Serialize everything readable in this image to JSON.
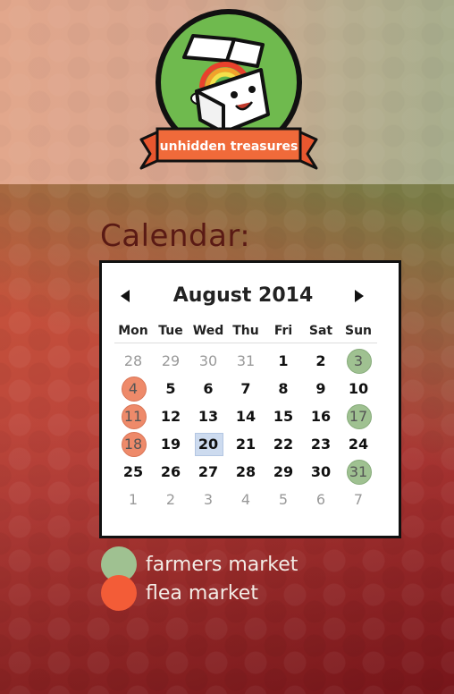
{
  "logo": {
    "text": "unhidden treasures"
  },
  "page": {
    "title": "Calendar:"
  },
  "calendar": {
    "month_label": "August 2014",
    "days_of_week": [
      "Mon",
      "Tue",
      "Wed",
      "Thu",
      "Fri",
      "Sat",
      "Sun"
    ],
    "weeks": [
      [
        {
          "d": "28",
          "other": true
        },
        {
          "d": "29",
          "other": true
        },
        {
          "d": "30",
          "other": true
        },
        {
          "d": "31",
          "other": true
        },
        {
          "d": "1"
        },
        {
          "d": "2"
        },
        {
          "d": "3",
          "event": "farmers"
        }
      ],
      [
        {
          "d": "4",
          "event": "flea"
        },
        {
          "d": "5"
        },
        {
          "d": "6"
        },
        {
          "d": "7"
        },
        {
          "d": "8"
        },
        {
          "d": "9"
        },
        {
          "d": "10"
        }
      ],
      [
        {
          "d": "11",
          "event": "flea"
        },
        {
          "d": "12"
        },
        {
          "d": "13"
        },
        {
          "d": "14"
        },
        {
          "d": "15"
        },
        {
          "d": "16"
        },
        {
          "d": "17",
          "event": "farmers"
        }
      ],
      [
        {
          "d": "18",
          "event": "flea"
        },
        {
          "d": "19"
        },
        {
          "d": "20",
          "today": true
        },
        {
          "d": "21"
        },
        {
          "d": "22"
        },
        {
          "d": "23"
        },
        {
          "d": "24"
        }
      ],
      [
        {
          "d": "25"
        },
        {
          "d": "26"
        },
        {
          "d": "27"
        },
        {
          "d": "28"
        },
        {
          "d": "29"
        },
        {
          "d": "30"
        },
        {
          "d": "31",
          "event": "farmers"
        }
      ],
      [
        {
          "d": "1",
          "other": true
        },
        {
          "d": "2",
          "other": true
        },
        {
          "d": "3",
          "other": true
        },
        {
          "d": "4",
          "other": true
        },
        {
          "d": "5",
          "other": true
        },
        {
          "d": "6",
          "other": true
        },
        {
          "d": "7",
          "other": true
        }
      ]
    ]
  },
  "legend": {
    "farmers": {
      "label": "farmers market",
      "color": "#9fc191"
    },
    "flea": {
      "label": "flea market",
      "color": "#f35c37"
    }
  },
  "icons": {
    "prev": "triangle-left-icon",
    "next": "triangle-right-icon"
  }
}
